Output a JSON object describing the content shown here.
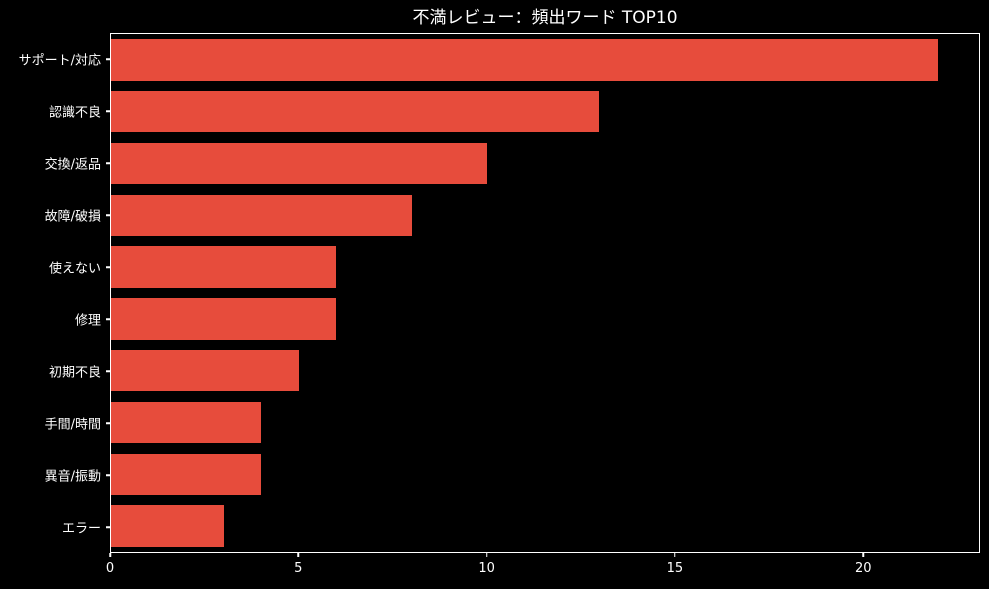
{
  "title": "不満レビュー：頻出ワード TOP10",
  "colors": {
    "background": "#000000",
    "bar": "#e74c3c",
    "text": "#ffffff",
    "axis": "#ffffff"
  },
  "chart_data": {
    "type": "bar",
    "orientation": "horizontal",
    "title": "不満レビュー：頻出ワード TOP10",
    "categories": [
      "サポート/対応",
      "認識不良",
      "交換/返品",
      "故障/破損",
      "使えない",
      "修理",
      "初期不良",
      "手間/時間",
      "異音/振動",
      "エラー"
    ],
    "values": [
      22,
      13,
      10,
      8,
      6,
      6,
      5,
      4,
      4,
      3
    ],
    "xlabel": "",
    "ylabel": "",
    "xlim": [
      0,
      23.1
    ],
    "xticks": [
      0,
      5,
      10,
      15,
      20
    ],
    "grid": false,
    "legend": false,
    "bar_color": "#e74c3c"
  }
}
